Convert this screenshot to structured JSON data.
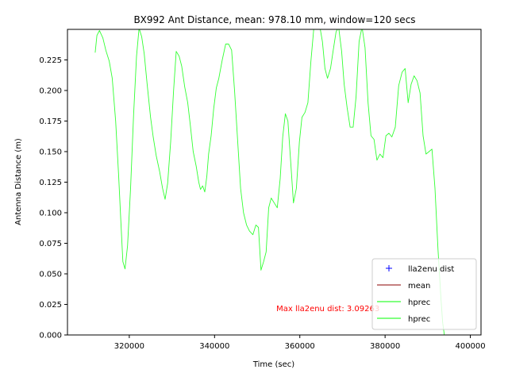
{
  "chart_data": {
    "type": "line",
    "title": "BX992 Ant Distance, mean: 978.10 mm, window=120 secs",
    "xlabel": "Time (sec)",
    "ylabel": "Antenna Distance (m)",
    "xlim": [
      305500,
      402500
    ],
    "ylim": [
      0.0,
      0.25
    ],
    "xticks": [
      320000,
      340000,
      360000,
      380000,
      400000
    ],
    "xtick_labels": [
      "320000",
      "340000",
      "360000",
      "380000",
      "400000"
    ],
    "yticks": [
      0.0,
      0.025,
      0.05,
      0.075,
      0.1,
      0.125,
      0.15,
      0.175,
      0.2,
      0.225
    ],
    "ytick_labels": [
      "0.000",
      "0.025",
      "0.050",
      "0.075",
      "0.100",
      "0.125",
      "0.150",
      "0.175",
      "0.200",
      "0.225"
    ],
    "grid": false,
    "legend_position": "lower-right",
    "legend": [
      {
        "label": "lla2enu dist",
        "marker": "+",
        "color": "#0000ff"
      },
      {
        "label": "mean",
        "color": "#8b0000"
      },
      {
        "label": "hprec",
        "color": "#00ff00"
      },
      {
        "label": "hprec",
        "color": "#00ff00"
      }
    ],
    "annotation": {
      "text": "Max lla2enu dist: 3.09263",
      "color": "#ff0000",
      "x": 354500,
      "y": 0.022
    },
    "series": [
      {
        "name": "hprec",
        "color": "#33ff33",
        "x": [
          312000,
          312400,
          313000,
          313800,
          314500,
          315300,
          316000,
          316800,
          317500,
          318000,
          318500,
          319000,
          319600,
          320300,
          321000,
          321700,
          322300,
          322900,
          323500,
          324200,
          325000,
          325600,
          326300,
          327100,
          327800,
          328400,
          329000,
          329700,
          330400,
          331000,
          331700,
          332300,
          333000,
          333700,
          334300,
          335000,
          335700,
          336300,
          336700,
          337200,
          337700,
          338200,
          338600,
          339200,
          339800,
          340400,
          341000,
          341800,
          342600,
          343300,
          344000,
          344700,
          345400,
          346100,
          346800,
          347500,
          348200,
          349000,
          349700,
          350300,
          350900,
          351500,
          352100,
          352700,
          353300,
          354000,
          354700,
          355400,
          356000,
          356600,
          357200,
          357900,
          358500,
          359200,
          359900,
          360500,
          361200,
          361900,
          362600,
          363300,
          364000,
          364700,
          365300,
          365900,
          366500,
          367200,
          367800,
          368500,
          369100,
          369800,
          370400,
          371100,
          371800,
          372500,
          373200,
          373900,
          374600,
          375300,
          376000,
          376700,
          377400,
          378100,
          378800,
          379500,
          380200,
          380900,
          381600,
          382400,
          383200,
          384000,
          384700,
          385400,
          386100,
          386800,
          387500,
          388200,
          388900,
          389600,
          390300,
          391000,
          391700,
          392400,
          393100,
          393500,
          393900
        ],
        "values": [
          0.231,
          0.245,
          0.249,
          0.243,
          0.233,
          0.224,
          0.21,
          0.175,
          0.13,
          0.095,
          0.06,
          0.054,
          0.073,
          0.12,
          0.18,
          0.228,
          0.251,
          0.244,
          0.23,
          0.205,
          0.178,
          0.162,
          0.147,
          0.134,
          0.12,
          0.111,
          0.124,
          0.158,
          0.2,
          0.232,
          0.228,
          0.22,
          0.203,
          0.19,
          0.172,
          0.15,
          0.138,
          0.125,
          0.119,
          0.122,
          0.117,
          0.13,
          0.148,
          0.163,
          0.185,
          0.202,
          0.21,
          0.225,
          0.238,
          0.238,
          0.233,
          0.2,
          0.16,
          0.12,
          0.1,
          0.09,
          0.085,
          0.082,
          0.09,
          0.088,
          0.053,
          0.06,
          0.068,
          0.104,
          0.112,
          0.108,
          0.104,
          0.128,
          0.162,
          0.181,
          0.175,
          0.14,
          0.108,
          0.12,
          0.158,
          0.178,
          0.182,
          0.19,
          0.224,
          0.252,
          0.255,
          0.252,
          0.24,
          0.218,
          0.21,
          0.218,
          0.232,
          0.248,
          0.252,
          0.232,
          0.205,
          0.186,
          0.17,
          0.17,
          0.195,
          0.24,
          0.252,
          0.235,
          0.19,
          0.163,
          0.16,
          0.143,
          0.148,
          0.145,
          0.163,
          0.165,
          0.162,
          0.17,
          0.204,
          0.215,
          0.218,
          0.19,
          0.205,
          0.212,
          0.208,
          0.198,
          0.163,
          0.148,
          0.15,
          0.152,
          0.12,
          0.07,
          0.03,
          0.01,
          0.0
        ]
      }
    ]
  }
}
